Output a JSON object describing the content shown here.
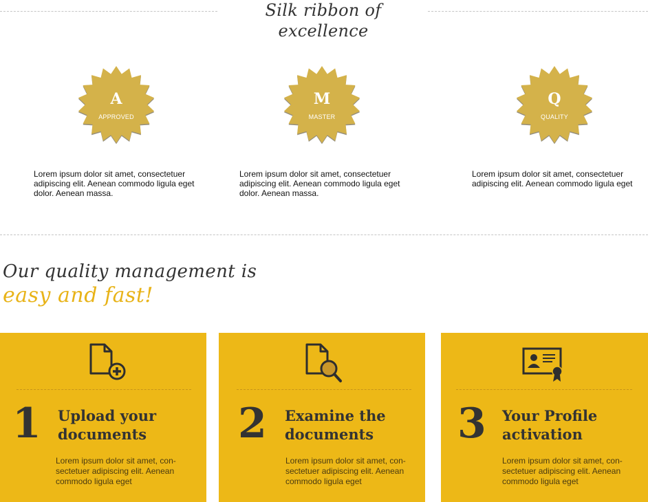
{
  "section_title": "Silk ribbon of excellence",
  "badges": [
    {
      "letter": "A",
      "caption": "APPROVED",
      "text": "Lorem ipsum dolor sit amet, consectetuer adipiscing elit. Aenean commodo ligula eget dolor. Aenean massa."
    },
    {
      "letter": "M",
      "caption": "MASTER",
      "text": "Lorem ipsum dolor sit amet, consectetuer adipiscing elit. Aenean commodo ligula eget dolor. Aenean massa."
    },
    {
      "letter": "Q",
      "caption": "QUALITY",
      "text": "Lorem ipsum dolor sit amet, consectetuer adipiscing elit. Aenean commodo ligula eget"
    }
  ],
  "headline": {
    "line1": "Our quality management is",
    "line2": "easy and fast!"
  },
  "steps": [
    {
      "number": "1",
      "title_line1": "Upload your",
      "title_line2": "documents",
      "icon": "document-add-icon",
      "text": "Lorem ipsum dolor sit amet, con-sectetuer adipiscing elit. Aenean commodo ligula eget"
    },
    {
      "number": "2",
      "title_line1": "Examine the",
      "title_line2": "documents",
      "icon": "document-search-icon",
      "text": "Lorem ipsum dolor sit amet, con-sectetuer adipiscing elit. Aenean commodo ligula eget"
    },
    {
      "number": "3",
      "title_line1": "Your Profile",
      "title_line2": "activation",
      "icon": "certificate-icon",
      "text": "Lorem ipsum dolor sit amet, con-sectetuer adipiscing elit. Aenean commodo ligula eget"
    }
  ],
  "colors": {
    "badge_gold": "#d4b24a",
    "accent_yellow": "#edb817",
    "headline_accent": "#e8b318",
    "dark_text": "#333333"
  }
}
